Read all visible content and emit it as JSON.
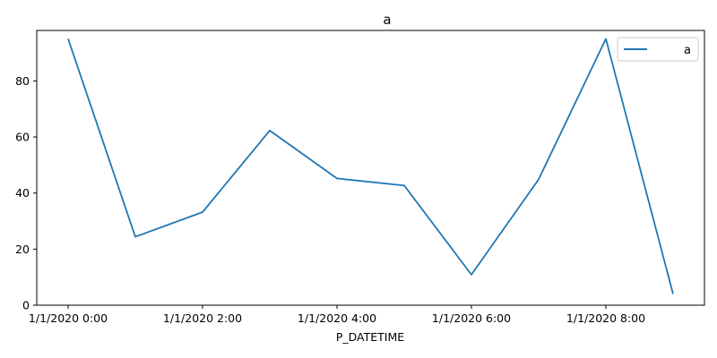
{
  "chart_data": {
    "type": "line",
    "title": "a",
    "xlabel": "P_DATETIME",
    "ylabel": "",
    "x": [
      "1/1/2020 0:00",
      "1/1/2020 1:00",
      "1/1/2020 2:00",
      "1/1/2020 3:00",
      "1/1/2020 4:00",
      "1/1/2020 5:00",
      "1/1/2020 6:00",
      "1/1/2020 7:00",
      "1/1/2020 8:00",
      "1/1/2020 9:00"
    ],
    "x_tick_labels": [
      "1/1/2020 0:00",
      "1/1/2020 2:00",
      "1/1/2020 4:00",
      "1/1/2020 6:00",
      "1/1/2020 8:00"
    ],
    "ylim": [
      0,
      98
    ],
    "y_ticks": [
      0,
      20,
      40,
      60,
      80
    ],
    "grid": false,
    "legend_position": "top-right",
    "series": [
      {
        "name": "a",
        "color": "#1f77b4",
        "values": [
          95,
          24.4,
          33.2,
          62.3,
          45.2,
          42.7,
          10.9,
          44.9,
          95,
          4
        ]
      }
    ]
  }
}
